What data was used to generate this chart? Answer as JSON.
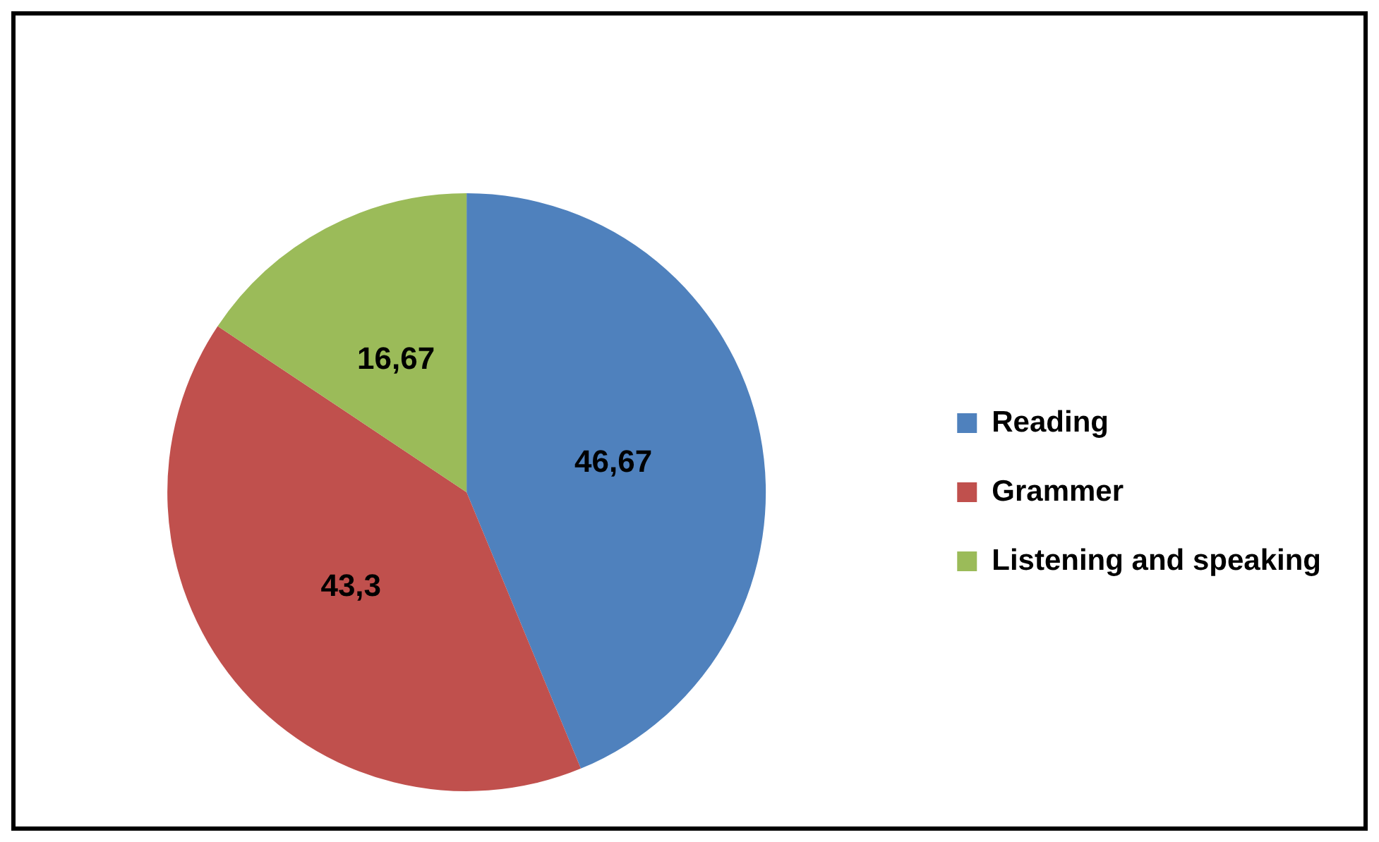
{
  "chart_data": {
    "type": "pie",
    "categories": [
      "Reading",
      "Grammer",
      "Listening and speaking"
    ],
    "values": [
      46.67,
      43.3,
      16.67
    ],
    "colors": [
      "#4f81bd",
      "#c0504d",
      "#9bbb59"
    ],
    "value_labels": [
      "46,67",
      "43,3",
      "16,67"
    ],
    "legend": "right"
  }
}
